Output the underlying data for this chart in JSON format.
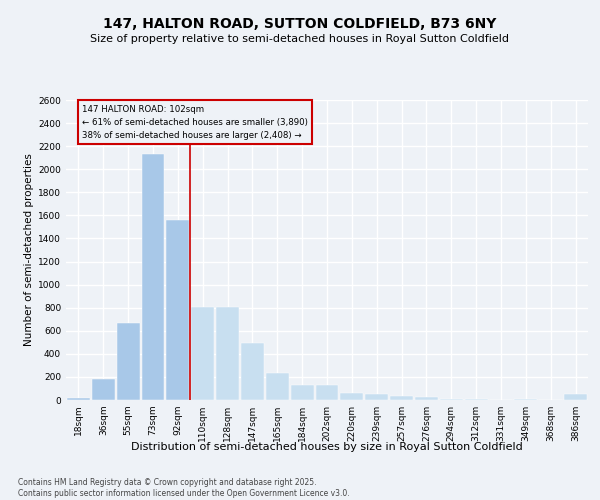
{
  "title": "147, HALTON ROAD, SUTTON COLDFIELD, B73 6NY",
  "subtitle": "Size of property relative to semi-detached houses in Royal Sutton Coldfield",
  "xlabel": "Distribution of semi-detached houses by size in Royal Sutton Coldfield",
  "ylabel": "Number of semi-detached properties",
  "categories": [
    "18sqm",
    "36sqm",
    "55sqm",
    "73sqm",
    "92sqm",
    "110sqm",
    "128sqm",
    "147sqm",
    "165sqm",
    "184sqm",
    "202sqm",
    "220sqm",
    "239sqm",
    "257sqm",
    "276sqm",
    "294sqm",
    "312sqm",
    "331sqm",
    "349sqm",
    "368sqm",
    "386sqm"
  ],
  "values": [
    20,
    185,
    670,
    2130,
    1560,
    810,
    810,
    490,
    230,
    130,
    130,
    60,
    55,
    35,
    30,
    10,
    5,
    0,
    5,
    0,
    50
  ],
  "bar_color_left": "#a8c8e8",
  "bar_color_right": "#c8dff0",
  "property_line_bin": 5,
  "annotation_line1": "147 HALTON ROAD: 102sqm",
  "annotation_line2": "← 61% of semi-detached houses are smaller (3,890)",
  "annotation_line3": "38% of semi-detached houses are larger (2,408) →",
  "vline_color": "#cc0000",
  "annotation_edge_color": "#cc0000",
  "ylim": [
    0,
    2600
  ],
  "yticks": [
    0,
    200,
    400,
    600,
    800,
    1000,
    1200,
    1400,
    1600,
    1800,
    2000,
    2200,
    2400,
    2600
  ],
  "footnote": "Contains HM Land Registry data © Crown copyright and database right 2025.\nContains public sector information licensed under the Open Government Licence v3.0.",
  "bg_color": "#eef2f7",
  "grid_color": "#ffffff",
  "title_fontsize": 10,
  "subtitle_fontsize": 8,
  "tick_fontsize": 6.5,
  "ylabel_fontsize": 7.5,
  "xlabel_fontsize": 8,
  "footnote_fontsize": 5.5
}
